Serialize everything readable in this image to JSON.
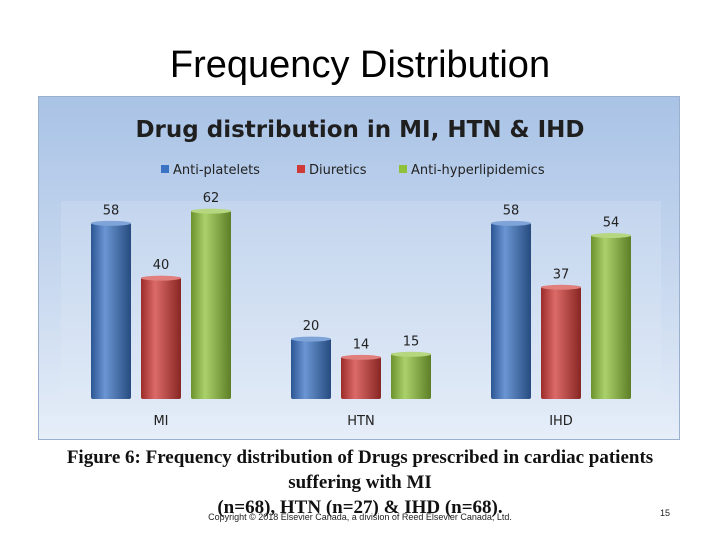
{
  "slide": {
    "title": "Frequency Distribution",
    "caption_line1": "Figure 6: Frequency distribution of Drugs prescribed in cardiac patients suffering with MI",
    "caption_line2": "(n=68), HTN (n=27) & IHD (n=68).",
    "copyright": "Copyright © 2018 Elsevier Canada, a division of Reed Elsevier Canada, Ltd.",
    "page_number": "15"
  },
  "chart_data": {
    "type": "bar",
    "title": "Drug distribution in MI, HTN & IHD",
    "categories": [
      "MI",
      "HTN",
      "IHD"
    ],
    "series": [
      {
        "name": "Anti-platelets",
        "values": [
          58,
          20,
          58
        ],
        "color": "#3a73c4"
      },
      {
        "name": "Diuretics",
        "values": [
          40,
          14,
          37
        ],
        "color": "#d03a36"
      },
      {
        "name": "Anti-hyperlipidemics",
        "values": [
          62,
          15,
          54
        ],
        "color": "#8fc23a"
      }
    ],
    "ylim": [
      0,
      65
    ],
    "legend": "top",
    "grid": false,
    "data_labels": true
  }
}
